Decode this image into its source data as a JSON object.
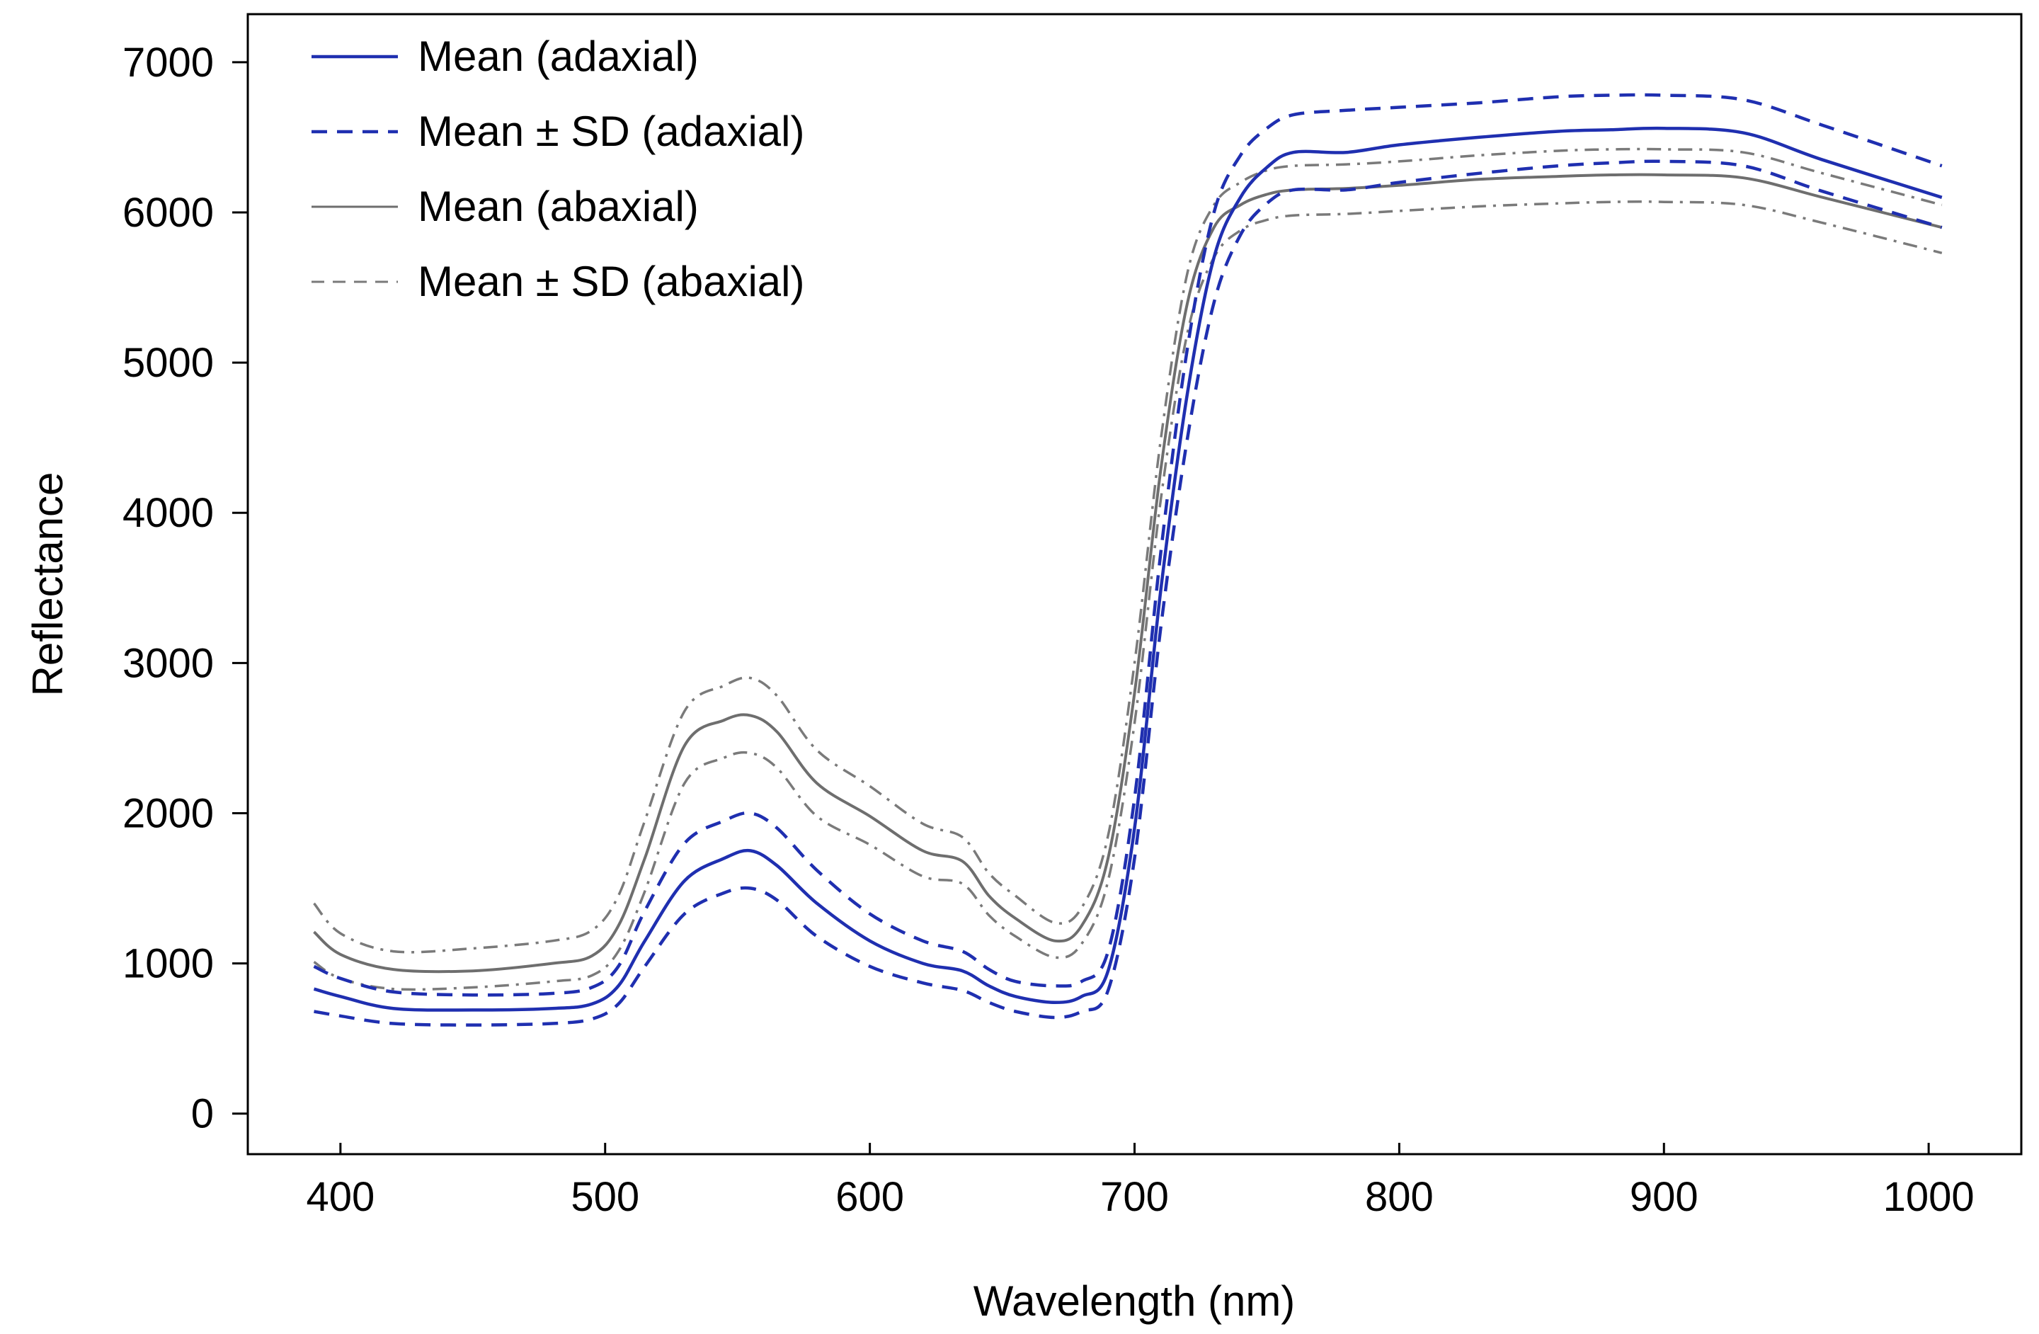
{
  "chart_data": {
    "type": "line",
    "title": "",
    "xlabel": "Wavelength (nm)",
    "ylabel": "Reflectance",
    "xlim": [
      365,
      1035
    ],
    "ylim": [
      -270,
      7320
    ],
    "xticks": [
      400,
      500,
      600,
      700,
      800,
      900,
      1000
    ],
    "yticks": [
      0,
      1000,
      2000,
      3000,
      4000,
      5000,
      6000,
      7000
    ],
    "xtick_labels": [
      "400",
      "500",
      "600",
      "700",
      "800",
      "900",
      "1000"
    ],
    "ytick_labels": [
      "0",
      "1000",
      "2000",
      "3000",
      "4000",
      "5000",
      "6000",
      "7000"
    ],
    "grid": false,
    "legend_position": "top-left",
    "x": [
      390,
      400,
      420,
      450,
      480,
      495,
      505,
      515,
      530,
      545,
      555,
      565,
      580,
      600,
      620,
      635,
      645,
      655,
      670,
      680,
      690,
      700,
      710,
      720,
      730,
      740,
      750,
      760,
      780,
      800,
      830,
      860,
      880,
      900,
      930,
      960,
      1005
    ],
    "series": [
      {
        "name": "Mean (adaxial)",
        "color": "#1f2fb0",
        "dash": "solid",
        "width": 4.5,
        "values": [
          830,
          780,
          700,
          690,
          700,
          730,
          850,
          1150,
          1550,
          1700,
          1750,
          1650,
          1400,
          1150,
          1000,
          950,
          850,
          780,
          740,
          780,
          950,
          1900,
          3500,
          4800,
          5700,
          6100,
          6300,
          6400,
          6400,
          6450,
          6500,
          6540,
          6550,
          6560,
          6530,
          6350,
          6100
        ]
      },
      {
        "name": "Mean ± SD (adaxial)",
        "color": "#1f2fb0",
        "dash": "22,14",
        "width": 4.5,
        "values": [
          980,
          900,
          810,
          790,
          800,
          840,
          980,
          1350,
          1800,
          1950,
          2000,
          1900,
          1620,
          1330,
          1150,
          1080,
          960,
          880,
          850,
          880,
          1080,
          2100,
          3750,
          5100,
          6000,
          6380,
          6560,
          6650,
          6680,
          6700,
          6730,
          6770,
          6780,
          6780,
          6750,
          6580,
          6310
        ]
      },
      {
        "name": "Mean ± SD (adaxial)",
        "color": "#1f2fb0",
        "dash": "22,14",
        "width": 4.5,
        "values": [
          680,
          650,
          600,
          590,
          600,
          630,
          730,
          980,
          1330,
          1470,
          1500,
          1420,
          1180,
          980,
          870,
          820,
          740,
          680,
          640,
          680,
          820,
          1700,
          3250,
          4500,
          5400,
          5850,
          6060,
          6150,
          6150,
          6200,
          6260,
          6310,
          6330,
          6340,
          6310,
          6140,
          5900
        ]
      },
      {
        "name": "Mean (abaxial)",
        "color": "#6e6e6e",
        "dash": "solid",
        "width": 4,
        "values": [
          1210,
          1060,
          960,
          950,
          1000,
          1050,
          1250,
          1700,
          2450,
          2620,
          2650,
          2540,
          2200,
          1980,
          1750,
          1680,
          1450,
          1300,
          1150,
          1250,
          1700,
          2800,
          4300,
          5400,
          5900,
          6050,
          6120,
          6150,
          6160,
          6180,
          6220,
          6240,
          6250,
          6250,
          6230,
          6100,
          5900
        ]
      },
      {
        "name": "Mean ± SD (abaxial)",
        "color": "#7a7a7a",
        "dash": "20,10,4,10",
        "width": 3.5,
        "values": [
          1400,
          1200,
          1080,
          1100,
          1150,
          1220,
          1450,
          1950,
          2680,
          2850,
          2900,
          2780,
          2420,
          2180,
          1930,
          1840,
          1600,
          1450,
          1270,
          1370,
          1850,
          3000,
          4500,
          5600,
          6050,
          6200,
          6280,
          6310,
          6320,
          6340,
          6380,
          6410,
          6420,
          6420,
          6400,
          6260,
          6050
        ]
      },
      {
        "name": "Mean ± SD (abaxial)",
        "color": "#7a7a7a",
        "dash": "20,10,4,10",
        "width": 3.5,
        "values": [
          1010,
          900,
          830,
          840,
          880,
          920,
          1080,
          1480,
          2200,
          2370,
          2400,
          2300,
          1980,
          1790,
          1580,
          1530,
          1320,
          1180,
          1040,
          1130,
          1550,
          2600,
          4100,
          5200,
          5700,
          5880,
          5950,
          5980,
          5990,
          6010,
          6040,
          6060,
          6070,
          6070,
          6050,
          5930,
          5730
        ]
      }
    ],
    "legend": [
      {
        "label": "Mean (adaxial)",
        "color": "#1f2fb0",
        "dash": "solid",
        "width": 4.5
      },
      {
        "label": "Mean ± SD (adaxial)",
        "color": "#1f2fb0",
        "dash": "22,14",
        "width": 4.5
      },
      {
        "label": "Mean (abaxial)",
        "color": "#6e6e6e",
        "dash": "solid",
        "width": 3
      },
      {
        "label": "Mean ± SD (abaxial)",
        "color": "#7a7a7a",
        "dash": "18,12",
        "width": 3
      }
    ]
  }
}
